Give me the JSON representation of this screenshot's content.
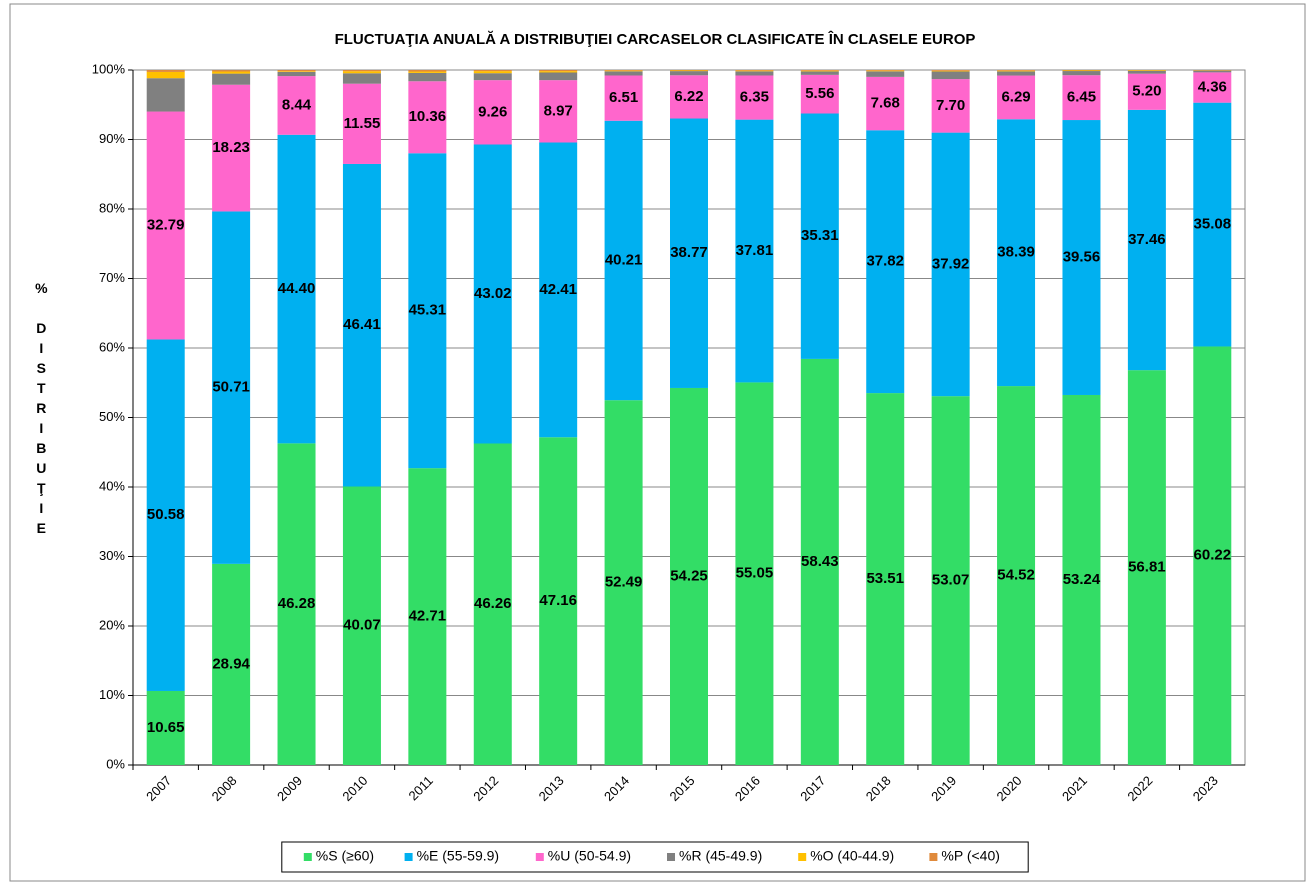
{
  "chart_data": {
    "type": "stacked_bar",
    "title": "FLUCTUAŢIA ANUALĂ A DISTRIBUŢIEI CARCASELOR CLASIFICATE ÎN CLASELE EUROP",
    "y_label": "% DISTRIBUŢIE",
    "categories": [
      "2007",
      "2008",
      "2009",
      "2010",
      "2011",
      "2012",
      "2013",
      "2014",
      "2015",
      "2016",
      "2017",
      "2018",
      "2019",
      "2020",
      "2021",
      "2022",
      "2023"
    ],
    "series": [
      {
        "name": "%S (≥60)",
        "color": "#33dd66",
        "values": [
          10.65,
          28.94,
          46.28,
          40.07,
          42.71,
          46.26,
          47.16,
          52.49,
          54.25,
          55.05,
          58.43,
          53.51,
          53.07,
          54.52,
          53.24,
          56.81,
          60.22
        ],
        "value_labels": [
          "10.65",
          "28.94",
          "46.28",
          "40.07",
          "42.71",
          "46.26",
          "47.16",
          "52.49",
          "54.25",
          "55.05",
          "58.43",
          "53.51",
          "53.07",
          "54.52",
          "53.24",
          "56.81",
          "60.22"
        ]
      },
      {
        "name": "%E (55-59.9)",
        "color": "#00b0f0",
        "values": [
          50.58,
          50.71,
          44.4,
          46.41,
          45.31,
          43.02,
          42.41,
          40.21,
          38.77,
          37.81,
          35.31,
          37.82,
          37.92,
          38.39,
          39.56,
          37.46,
          35.08
        ],
        "value_labels": [
          "50.58",
          "50.71",
          "44.40",
          "46.41",
          "45.31",
          "43.02",
          "42.41",
          "40.21",
          "38.77",
          "37.81",
          "35.31",
          "37.82",
          "37.92",
          "38.39",
          "39.56",
          "37.46",
          "35.08"
        ]
      },
      {
        "name": "%U (50-54.9)",
        "color": "#ff66cc",
        "values": [
          32.79,
          18.23,
          8.44,
          11.55,
          10.36,
          9.26,
          8.97,
          6.51,
          6.22,
          6.35,
          5.56,
          7.68,
          7.7,
          6.29,
          6.45,
          5.2,
          4.36
        ],
        "value_labels": [
          "32.79",
          "18.23",
          "8.44",
          "11.55",
          "10.36",
          "9.26",
          "8.97",
          "6.51",
          "6.22",
          "6.35",
          "5.56",
          "7.68",
          "7.70",
          "6.29",
          "6.45",
          "5.20",
          "4.36"
        ]
      },
      {
        "name": "%R (45-49.9)",
        "color": "#808080",
        "values": [
          4.8,
          1.6,
          0.6,
          1.5,
          1.2,
          1.0,
          1.1,
          0.6,
          0.6,
          0.6,
          0.5,
          0.8,
          1.1,
          0.6,
          0.6,
          0.4,
          0.25
        ]
      },
      {
        "name": "%O (40-44.9)",
        "color": "#ffc000",
        "values": [
          0.9,
          0.3,
          0.1,
          0.3,
          0.2,
          0.3,
          0.2,
          0.1,
          0.1,
          0.1,
          0.1,
          0.1,
          0.1,
          0.1,
          0.1,
          0.1,
          0.05
        ]
      },
      {
        "name": "%P (<40)",
        "color": "#e08a3c",
        "values": [
          0.28,
          0.2,
          0.18,
          0.17,
          0.22,
          0.16,
          0.16,
          0.09,
          0.06,
          0.09,
          0.1,
          0.09,
          0.11,
          0.1,
          0.05,
          0.03,
          0.04
        ]
      }
    ],
    "ylim": [
      0,
      100
    ],
    "yticks": [
      {
        "value": 0,
        "label": "0%"
      },
      {
        "value": 10,
        "label": "10%"
      },
      {
        "value": 20,
        "label": "20%"
      },
      {
        "value": 30,
        "label": "30%"
      },
      {
        "value": 40,
        "label": "40%"
      },
      {
        "value": 50,
        "label": "50%"
      },
      {
        "value": 60,
        "label": "60%"
      },
      {
        "value": 70,
        "label": "70%"
      },
      {
        "value": 80,
        "label": "80%"
      },
      {
        "value": 90,
        "label": "90%"
      },
      {
        "value": 100,
        "label": "100%"
      }
    ],
    "grid": true,
    "legend": "bottom"
  }
}
